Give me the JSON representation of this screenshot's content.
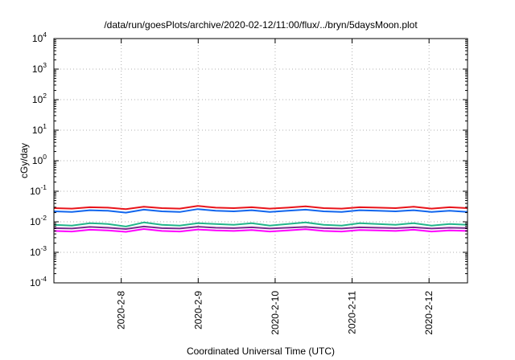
{
  "chart_data": {
    "type": "line",
    "title": "/data/run/goesPlots/archive/2020-02-12/11:00/flux/../bryn/5daysMoon.plot",
    "xlabel": "Coordinated Universal Time (UTC)",
    "ylabel": "cGy/day",
    "x_range": [
      "2020-02-07T03:00",
      "2020-02-12T12:00"
    ],
    "x_ticks": [
      {
        "label": "2020-2-8",
        "t": "2020-02-08T00:00"
      },
      {
        "label": "2020-2-9",
        "t": "2020-02-09T00:00"
      },
      {
        "label": "2020-2-10",
        "t": "2020-02-10T00:00"
      },
      {
        "label": "2020-2-11",
        "t": "2020-02-11T00:00"
      },
      {
        "label": "2020-2-12",
        "t": "2020-02-12T00:00"
      }
    ],
    "y_scale": "log",
    "ylim": [
      0.0001,
      10000
    ],
    "y_ticks": [
      {
        "base": "10",
        "exp": "-4",
        "value": 0.0001
      },
      {
        "base": "10",
        "exp": "-3",
        "value": 0.001
      },
      {
        "base": "10",
        "exp": "-2",
        "value": 0.01
      },
      {
        "base": "10",
        "exp": "-1",
        "value": 0.1
      },
      {
        "base": "10",
        "exp": "0",
        "value": 1
      },
      {
        "base": "10",
        "exp": "1",
        "value": 10
      },
      {
        "base": "10",
        "exp": "2",
        "value": 100
      },
      {
        "base": "10",
        "exp": "3",
        "value": 1000
      },
      {
        "base": "10",
        "exp": "4",
        "value": 10000
      }
    ],
    "grid": true,
    "series": [
      {
        "color": "#e8141b",
        "values": [
          0.028,
          0.027,
          0.03,
          0.029,
          0.026,
          0.031,
          0.028,
          0.027,
          0.033,
          0.029,
          0.028,
          0.03,
          0.027,
          0.029,
          0.032,
          0.028,
          0.027,
          0.03,
          0.029,
          0.028,
          0.031,
          0.027,
          0.03,
          0.028
        ]
      },
      {
        "color": "#1166ee",
        "values": [
          0.022,
          0.021,
          0.024,
          0.023,
          0.02,
          0.025,
          0.022,
          0.021,
          0.026,
          0.023,
          0.022,
          0.024,
          0.021,
          0.023,
          0.025,
          0.022,
          0.021,
          0.024,
          0.023,
          0.022,
          0.024,
          0.021,
          0.023,
          0.021
        ]
      },
      {
        "color": "#22b58a",
        "values": [
          0.008,
          0.0075,
          0.009,
          0.0085,
          0.007,
          0.0095,
          0.008,
          0.0075,
          0.009,
          0.0085,
          0.008,
          0.009,
          0.0075,
          0.0085,
          0.0095,
          0.008,
          0.0075,
          0.009,
          0.0085,
          0.008,
          0.009,
          0.0075,
          0.0085,
          0.008
        ]
      },
      {
        "color": "#7a2a8c",
        "values": [
          0.0062,
          0.006,
          0.0068,
          0.0064,
          0.0058,
          0.007,
          0.0062,
          0.006,
          0.0069,
          0.0064,
          0.0062,
          0.0066,
          0.006,
          0.0064,
          0.0068,
          0.0062,
          0.006,
          0.0066,
          0.0064,
          0.0062,
          0.0066,
          0.006,
          0.0064,
          0.0062
        ]
      },
      {
        "color": "#ff00ff",
        "values": [
          0.005,
          0.0048,
          0.0055,
          0.0052,
          0.0047,
          0.0058,
          0.005,
          0.0048,
          0.0056,
          0.0052,
          0.005,
          0.0054,
          0.0048,
          0.0052,
          0.0057,
          0.005,
          0.0048,
          0.0054,
          0.0052,
          0.005,
          0.0055,
          0.0048,
          0.0052,
          0.005
        ]
      }
    ]
  }
}
